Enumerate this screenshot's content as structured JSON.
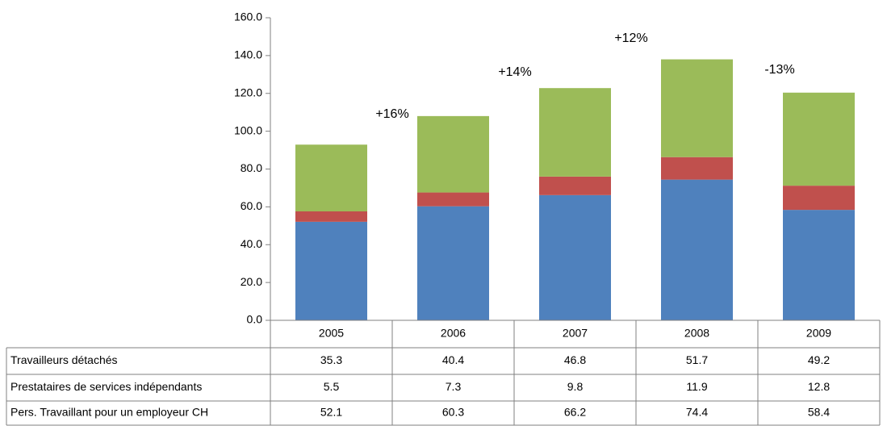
{
  "chart_data": {
    "type": "bar",
    "stacked": true,
    "categories": [
      "2005",
      "2006",
      "2007",
      "2008",
      "2009"
    ],
    "series": [
      {
        "name": "Travailleurs détachés",
        "color": "#9bbb59",
        "values": [
          35.3,
          40.4,
          46.8,
          51.7,
          49.2
        ]
      },
      {
        "name": "Prestataires de services indépendants",
        "color": "#c0504d",
        "values": [
          5.5,
          7.3,
          9.8,
          11.9,
          12.8
        ]
      },
      {
        "name": "Pers. Travaillant  pour un employeur CH",
        "color": "#4f81bd",
        "values": [
          52.1,
          60.3,
          66.2,
          74.4,
          58.4
        ]
      }
    ],
    "annotations": [
      "+16%",
      "+14%",
      "+12%",
      "-13%"
    ],
    "ylim": [
      0,
      160
    ],
    "yticks": [
      {
        "value": 0,
        "label": "0.0"
      },
      {
        "value": 20,
        "label": "20.0"
      },
      {
        "value": 40,
        "label": "40.0"
      },
      {
        "value": 60,
        "label": "60.0"
      },
      {
        "value": 80,
        "label": "80.0"
      },
      {
        "value": 100,
        "label": "100.0"
      },
      {
        "value": 120,
        "label": "120.0"
      },
      {
        "value": 140,
        "label": "140.0"
      },
      {
        "value": 160,
        "label": "160.0"
      }
    ],
    "grid": false
  }
}
